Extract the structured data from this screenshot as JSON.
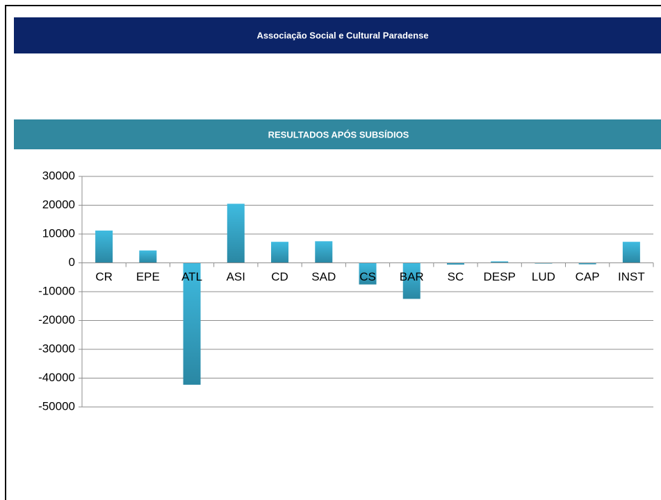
{
  "header": {
    "title": "Associação Social e Cultural Paradense"
  },
  "chart_data": {
    "type": "bar",
    "title": "RESULTADOS APÓS SUBSÍDIOS",
    "categories": [
      "CR",
      "EPE",
      "ATL",
      "ASI",
      "CD",
      "SAD",
      "CS",
      "BAR",
      "SC",
      "DESP",
      "LUD",
      "CAP",
      "INST"
    ],
    "values": [
      11200,
      4300,
      -42300,
      20500,
      7300,
      7500,
      -7500,
      -12500,
      -600,
      500,
      0,
      -500,
      7300
    ],
    "color": "#3fbbe0",
    "ylim": [
      -50000,
      30000
    ],
    "yticks": [
      -50000,
      -40000,
      -30000,
      -20000,
      -10000,
      0,
      10000,
      20000,
      30000
    ],
    "grid": true
  }
}
